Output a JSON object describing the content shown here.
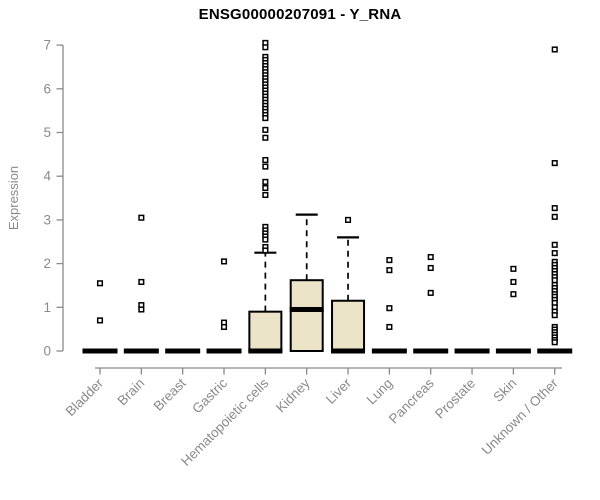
{
  "chart_data": {
    "type": "boxplot",
    "title": "ENSG00000207091 - Y_RNA",
    "ylabel": "Expression",
    "ylim": [
      0,
      7
    ],
    "yticks": [
      0,
      1,
      2,
      3,
      4,
      5,
      6,
      7
    ],
    "grid": false,
    "legend": null,
    "axis_color": "#8a8a8a",
    "box_fill": "#ece4c9",
    "box_stroke": "#000000",
    "outlier_marker": "open-square",
    "categories": [
      "Bladder",
      "Brain",
      "Breast",
      "Gastric",
      "Hematopoietic cells",
      "Kidney",
      "Liver",
      "Lung",
      "Pancreas",
      "Prostate",
      "Skin",
      "Unknown / Other"
    ],
    "series": [
      {
        "category": "Bladder",
        "q1": 0,
        "median": 0,
        "q3": 0,
        "whisker_low": 0,
        "whisker_high": 0,
        "outliers": [
          1.55,
          0.7
        ]
      },
      {
        "category": "Brain",
        "q1": 0,
        "median": 0,
        "q3": 0,
        "whisker_low": 0,
        "whisker_high": 0,
        "outliers": [
          3.05,
          1.58,
          1.05,
          0.95
        ]
      },
      {
        "category": "Breast",
        "q1": 0,
        "median": 0,
        "q3": 0,
        "whisker_low": 0,
        "whisker_high": 0,
        "outliers": []
      },
      {
        "category": "Gastric",
        "q1": 0,
        "median": 0,
        "q3": 0,
        "whisker_low": 0,
        "whisker_high": 0,
        "outliers": [
          2.05,
          0.65,
          0.55
        ]
      },
      {
        "category": "Hematopoietic cells",
        "q1": 0,
        "median": 0,
        "q3": 0.9,
        "whisker_low": 0,
        "whisker_high": 2.25,
        "outliers": [
          7.05,
          6.95,
          6.73,
          6.66,
          6.59,
          6.52,
          6.45,
          6.38,
          6.31,
          6.24,
          6.17,
          6.1,
          6.03,
          5.96,
          5.89,
          5.82,
          5.75,
          5.68,
          5.61,
          5.54,
          5.47,
          5.4,
          5.33,
          5.06,
          4.88,
          4.37,
          4.22,
          3.87,
          3.73,
          3.57,
          2.84,
          2.76,
          2.69,
          2.62,
          2.55,
          2.38,
          2.3
        ]
      },
      {
        "category": "Kidney",
        "q1": 0,
        "median": 0.95,
        "q3": 1.62,
        "whisker_low": 0,
        "whisker_high": 3.12,
        "outliers": []
      },
      {
        "category": "Liver",
        "q1": 0,
        "median": 0,
        "q3": 1.15,
        "whisker_low": 0,
        "whisker_high": 2.6,
        "outliers": [
          3.0
        ]
      },
      {
        "category": "Lung",
        "q1": 0,
        "median": 0,
        "q3": 0,
        "whisker_low": 0,
        "whisker_high": 0,
        "outliers": [
          2.08,
          1.85,
          0.98,
          0.55
        ]
      },
      {
        "category": "Pancreas",
        "q1": 0,
        "median": 0,
        "q3": 0,
        "whisker_low": 0,
        "whisker_high": 0,
        "outliers": [
          2.15,
          1.9,
          1.33
        ]
      },
      {
        "category": "Prostate",
        "q1": 0,
        "median": 0,
        "q3": 0,
        "whisker_low": 0,
        "whisker_high": 0,
        "outliers": []
      },
      {
        "category": "Skin",
        "q1": 0,
        "median": 0,
        "q3": 0,
        "whisker_low": 0,
        "whisker_high": 0,
        "outliers": [
          1.88,
          1.58,
          1.3
        ]
      },
      {
        "category": "Unknown / Other",
        "q1": 0,
        "median": 0,
        "q3": 0,
        "whisker_low": 0,
        "whisker_high": 0,
        "outliers": [
          6.9,
          4.3,
          3.27,
          3.07,
          2.43,
          2.24,
          2.04,
          1.97,
          1.9,
          1.83,
          1.76,
          1.69,
          1.62,
          1.51,
          1.44,
          1.37,
          1.3,
          1.24,
          1.17,
          1.1,
          1.0,
          0.9,
          0.82,
          0.55,
          0.49,
          0.43,
          0.37,
          0.31,
          0.25,
          0.2
        ]
      }
    ]
  }
}
